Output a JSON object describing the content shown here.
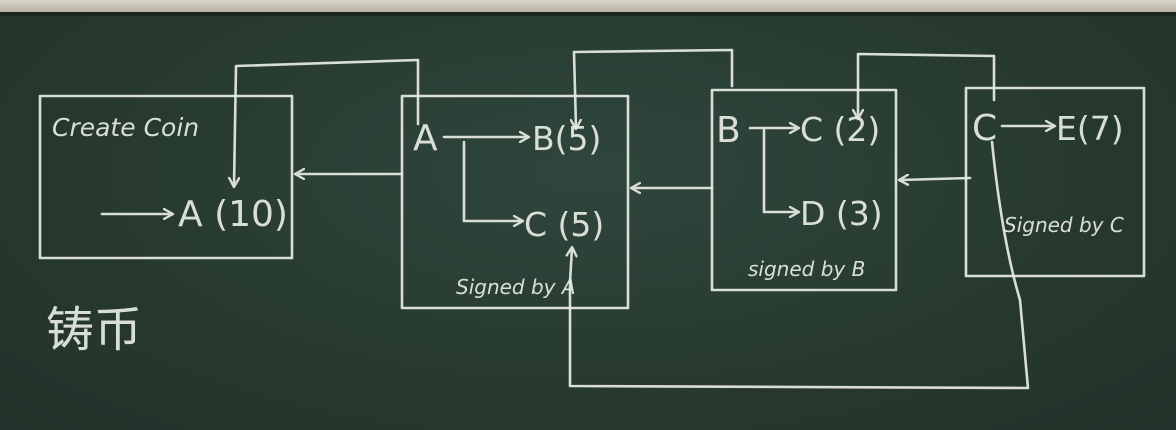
{
  "blocks": [
    {
      "id": "genesis",
      "header": "Create Coin",
      "outputs": [
        "A (10)"
      ]
    },
    {
      "id": "tx-a",
      "sender": "A",
      "outputs": [
        "B(5)",
        "C (5)"
      ],
      "signature": "Signed by A"
    },
    {
      "id": "tx-b",
      "sender": "B",
      "outputs": [
        "C (2)",
        "D (3)"
      ],
      "signature": "signed by B"
    },
    {
      "id": "tx-c",
      "sender": "C",
      "outputs": [
        "E(7)"
      ],
      "signature": "Signed by C"
    }
  ],
  "caption": "铸币",
  "colors": {
    "board": "#2a3d33",
    "chalk": "#e8ece6",
    "frame": "#cfc9bb"
  }
}
